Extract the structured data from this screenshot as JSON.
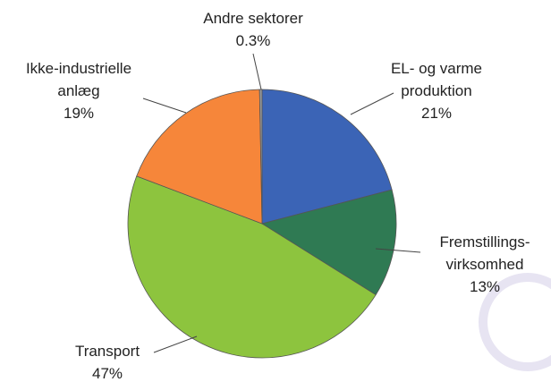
{
  "chart_data": {
    "type": "pie",
    "categories": [
      [
        "EL- og varme",
        "produktion"
      ],
      [
        "Fremstillings-",
        "virksomhed"
      ],
      [
        "Transport"
      ],
      [
        "Ikke-industrielle",
        "anlæg"
      ],
      [
        "Andre sektorer"
      ]
    ],
    "values": [
      21,
      13,
      47,
      19,
      0.3
    ],
    "value_labels": [
      "21%",
      "13%",
      "47%",
      "19%",
      "0.3%"
    ],
    "colors": [
      "#3b64b6",
      "#2f7a53",
      "#8dc43e",
      "#f6863a",
      "#9a9a9a"
    ]
  }
}
